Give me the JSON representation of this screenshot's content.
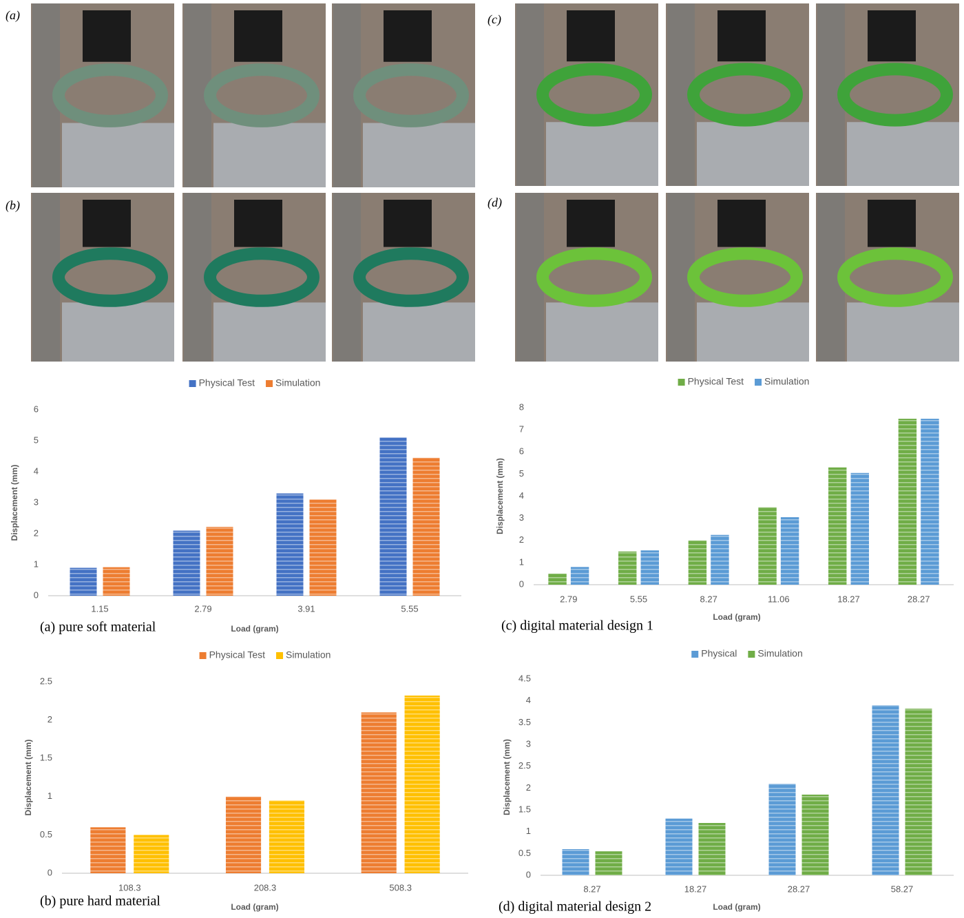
{
  "panels": [
    "(a)",
    "(b)",
    "(c)",
    "(d)"
  ],
  "chart_data": [
    {
      "type": "bar",
      "caption": "(a) pure soft material",
      "x_label": "Load (gram)",
      "y_label": "Displacement (mm)",
      "categories": [
        "1.15",
        "2.79",
        "3.91",
        "5.55"
      ],
      "series": [
        {
          "name": "Physical Test",
          "color": "#4472c4",
          "values": [
            0.9,
            2.1,
            3.3,
            5.1
          ]
        },
        {
          "name": "Simulation",
          "color": "#ed7d31",
          "values": [
            0.92,
            2.22,
            3.1,
            4.45
          ]
        }
      ],
      "ylim": [
        0,
        6
      ],
      "yticks": [
        0,
        1,
        2,
        3,
        4,
        5,
        6
      ]
    },
    {
      "type": "bar",
      "caption": "(c) digital material design 1",
      "x_label": "Load (gram)",
      "y_label": "Displacement (mm)",
      "categories": [
        "2.79",
        "5.55",
        "8.27",
        "11.06",
        "18.27",
        "28.27"
      ],
      "series": [
        {
          "name": "Physical Test",
          "color": "#70ad47",
          "values": [
            0.5,
            1.5,
            2.0,
            3.5,
            5.3,
            7.5
          ]
        },
        {
          "name": "Simulation",
          "color": "#5b9bd5",
          "values": [
            0.8,
            1.55,
            2.25,
            3.05,
            5.05,
            7.5
          ]
        }
      ],
      "ylim": [
        0,
        8
      ],
      "yticks": [
        0,
        1,
        2,
        3,
        4,
        5,
        6,
        7,
        8
      ]
    },
    {
      "type": "bar",
      "caption": "(b) pure hard material",
      "x_label": "Load (gram)",
      "y_label": "Displacement (mm)",
      "categories": [
        "108.3",
        "208.3",
        "508.3"
      ],
      "series": [
        {
          "name": "Physical Test",
          "color": "#ed7d31",
          "values": [
            0.6,
            1.0,
            2.1
          ]
        },
        {
          "name": "Simulation",
          "color": "#ffc000",
          "values": [
            0.5,
            0.95,
            2.32
          ]
        }
      ],
      "ylim": [
        0,
        2.5
      ],
      "yticks": [
        0,
        0.5,
        1,
        1.5,
        2,
        2.5
      ]
    },
    {
      "type": "bar",
      "caption": "(d) digital material design 2",
      "x_label": "Load (gram)",
      "y_label": "Displacement (mm)",
      "categories": [
        "8.27",
        "18.27",
        "28.27",
        "58.27"
      ],
      "series": [
        {
          "name": "Physical",
          "color": "#5b9bd5",
          "values": [
            0.6,
            1.3,
            2.1,
            3.9
          ]
        },
        {
          "name": "Simulation",
          "color": "#70ad47",
          "values": [
            0.55,
            1.2,
            1.85,
            3.82
          ]
        }
      ],
      "ylim": [
        0,
        4.5
      ],
      "yticks": [
        0,
        0.5,
        1,
        1.5,
        2,
        2.5,
        3,
        3.5,
        4,
        4.5
      ]
    }
  ]
}
